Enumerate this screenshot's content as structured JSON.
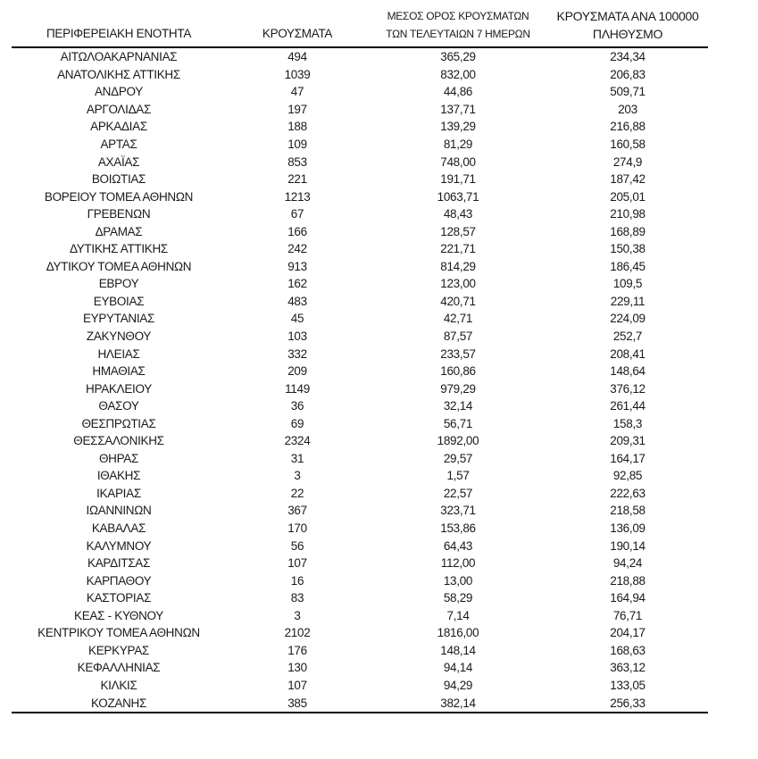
{
  "table": {
    "columns": [
      {
        "line1": "",
        "line2": "ΠΕΡΙΦΕΡΕΙΑΚΗ ΕΝΟΤΗΤΑ"
      },
      {
        "line1": "",
        "line2": "ΚΡΟΥΣΜΑΤΑ"
      },
      {
        "line1": "ΜΕΣΟΣ ΟΡΟΣ ΚΡΟΥΣΜΑΤΩΝ",
        "line2": "ΤΩΝ ΤΕΛΕΥΤΑΙΩΝ 7 ΗΜΕΡΩΝ"
      },
      {
        "line1": "ΚΡΟΥΣΜΑΤΑ ΑΝΑ 100000",
        "line2": "ΠΛΗΘΥΣΜΟ"
      }
    ],
    "rows": [
      [
        "ΑΙΤΩΛΟΑΚΑΡΝΑΝΙΑΣ",
        "494",
        "365,29",
        "234,34"
      ],
      [
        "ΑΝΑΤΟΛΙΚΗΣ ΑΤΤΙΚΗΣ",
        "1039",
        "832,00",
        "206,83"
      ],
      [
        "ΑΝΔΡΟΥ",
        "47",
        "44,86",
        "509,71"
      ],
      [
        "ΑΡΓΟΛΙΔΑΣ",
        "197",
        "137,71",
        "203"
      ],
      [
        "ΑΡΚΑΔΙΑΣ",
        "188",
        "139,29",
        "216,88"
      ],
      [
        "ΑΡΤΑΣ",
        "109",
        "81,29",
        "160,58"
      ],
      [
        "ΑΧΑΪΑΣ",
        "853",
        "748,00",
        "274,9"
      ],
      [
        "ΒΟΙΩΤΙΑΣ",
        "221",
        "191,71",
        "187,42"
      ],
      [
        "ΒΟΡΕΙΟΥ ΤΟΜΕΑ ΑΘΗΝΩΝ",
        "1213",
        "1063,71",
        "205,01"
      ],
      [
        "ΓΡΕΒΕΝΩΝ",
        "67",
        "48,43",
        "210,98"
      ],
      [
        "ΔΡΑΜΑΣ",
        "166",
        "128,57",
        "168,89"
      ],
      [
        "ΔΥΤΙΚΗΣ ΑΤΤΙΚΗΣ",
        "242",
        "221,71",
        "150,38"
      ],
      [
        "ΔΥΤΙΚΟΥ ΤΟΜΕΑ ΑΘΗΝΩΝ",
        "913",
        "814,29",
        "186,45"
      ],
      [
        "ΕΒΡΟΥ",
        "162",
        "123,00",
        "109,5"
      ],
      [
        "ΕΥΒΟΙΑΣ",
        "483",
        "420,71",
        "229,11"
      ],
      [
        "ΕΥΡΥΤΑΝΙΑΣ",
        "45",
        "42,71",
        "224,09"
      ],
      [
        "ΖΑΚΥΝΘΟΥ",
        "103",
        "87,57",
        "252,7"
      ],
      [
        "ΗΛΕΙΑΣ",
        "332",
        "233,57",
        "208,41"
      ],
      [
        "ΗΜΑΘΙΑΣ",
        "209",
        "160,86",
        "148,64"
      ],
      [
        "ΗΡΑΚΛΕΙΟΥ",
        "1149",
        "979,29",
        "376,12"
      ],
      [
        "ΘΑΣΟΥ",
        "36",
        "32,14",
        "261,44"
      ],
      [
        "ΘΕΣΠΡΩΤΙΑΣ",
        "69",
        "56,71",
        "158,3"
      ],
      [
        "ΘΕΣΣΑΛΟΝΙΚΗΣ",
        "2324",
        "1892,00",
        "209,31"
      ],
      [
        "ΘΗΡΑΣ",
        "31",
        "29,57",
        "164,17"
      ],
      [
        "ΙΘΑΚΗΣ",
        "3",
        "1,57",
        "92,85"
      ],
      [
        "ΙΚΑΡΙΑΣ",
        "22",
        "22,57",
        "222,63"
      ],
      [
        "ΙΩΑΝΝΙΝΩΝ",
        "367",
        "323,71",
        "218,58"
      ],
      [
        "ΚΑΒΑΛΑΣ",
        "170",
        "153,86",
        "136,09"
      ],
      [
        "ΚΑΛΥΜΝΟΥ",
        "56",
        "64,43",
        "190,14"
      ],
      [
        "ΚΑΡΔΙΤΣΑΣ",
        "107",
        "112,00",
        "94,24"
      ],
      [
        "ΚΑΡΠΑΘΟΥ",
        "16",
        "13,00",
        "218,88"
      ],
      [
        "ΚΑΣΤΟΡΙΑΣ",
        "83",
        "58,29",
        "164,94"
      ],
      [
        "ΚΕΑΣ - ΚΥΘΝΟΥ",
        "3",
        "7,14",
        "76,71"
      ],
      [
        "ΚΕΝΤΡΙΚΟΥ ΤΟΜΕΑ ΑΘΗΝΩΝ",
        "2102",
        "1816,00",
        "204,17"
      ],
      [
        "ΚΕΡΚΥΡΑΣ",
        "176",
        "148,14",
        "168,63"
      ],
      [
        "ΚΕΦΑΛΛΗΝΙΑΣ",
        "130",
        "94,14",
        "363,12"
      ],
      [
        "ΚΙΛΚΙΣ",
        "107",
        "94,29",
        "133,05"
      ],
      [
        "ΚΟΖΑΝΗΣ",
        "385",
        "382,14",
        "256,33"
      ]
    ],
    "cell_names": [
      "region-name-cell",
      "cases-cell",
      "avg7-cell",
      "per100k-cell"
    ]
  }
}
